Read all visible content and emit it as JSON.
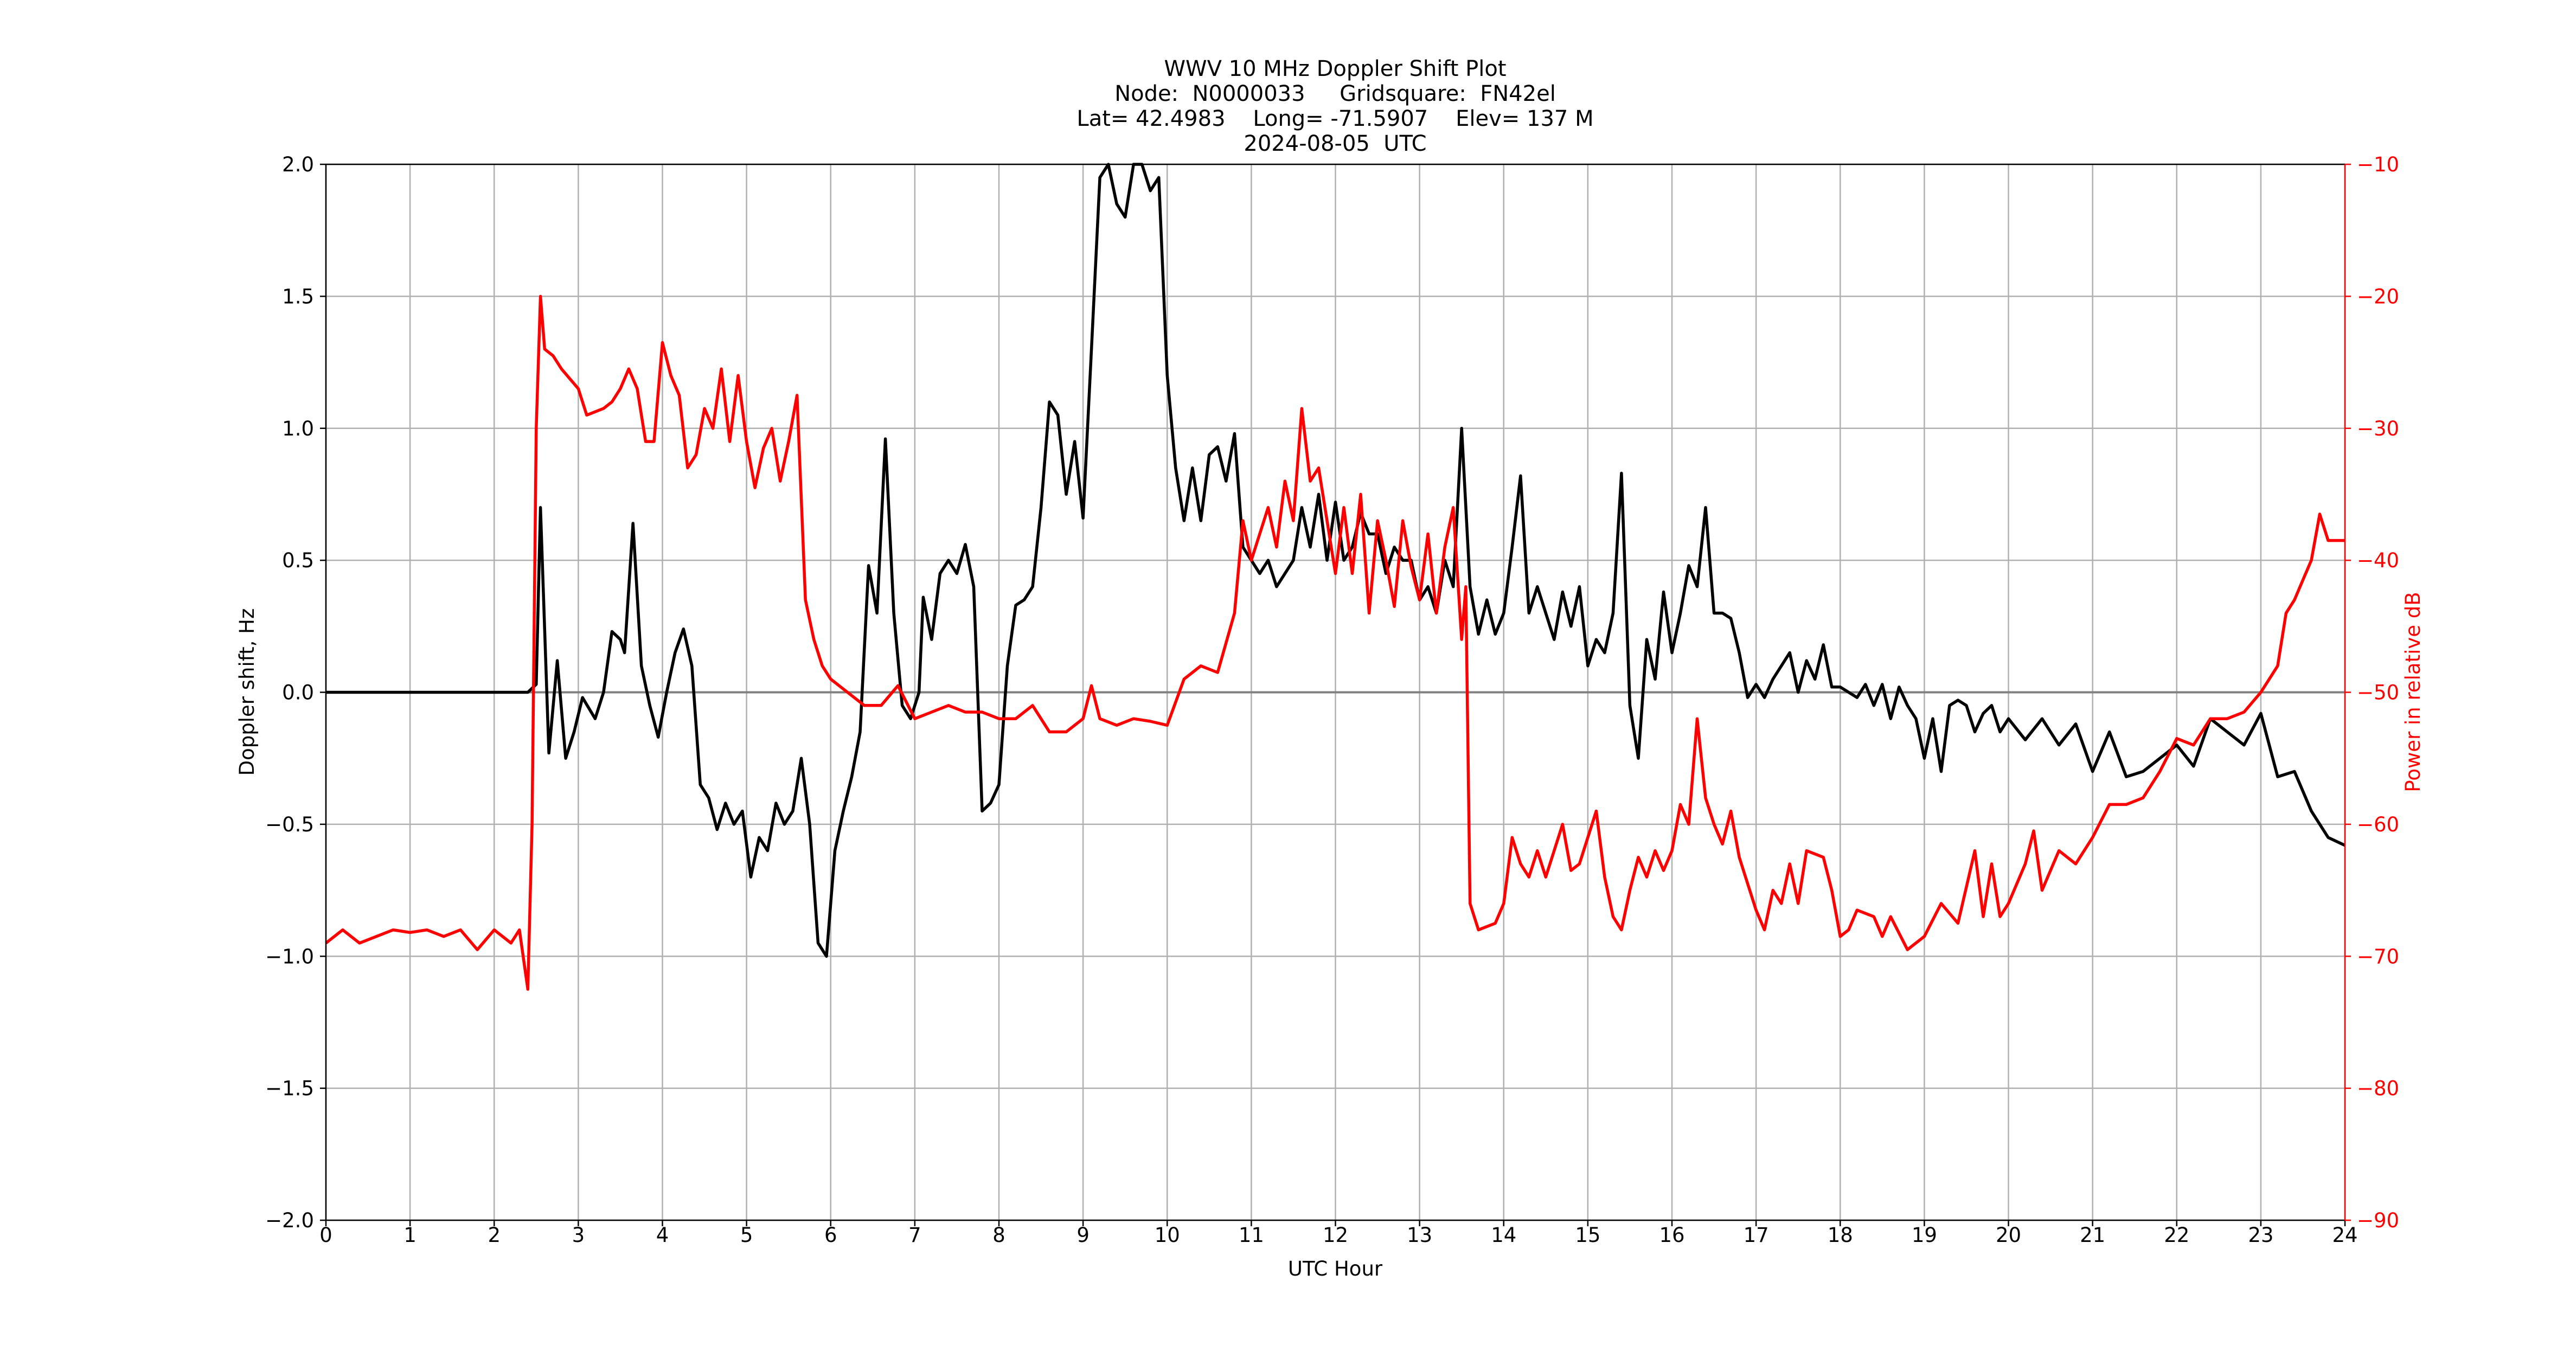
{
  "chart_data": {
    "type": "line",
    "title": [
      "WWV 10 MHz Doppler Shift Plot",
      "Node:  N0000033     Gridsquare:  FN42el",
      "Lat= 42.4983    Long= -71.5907    Elev= 137 M",
      "2024-08-05  UTC"
    ],
    "xlabel": "UTC Hour",
    "ylabel": "Doppler shift, Hz",
    "y2label": "Power in relative dB",
    "xlim": [
      0,
      24
    ],
    "xticks": [
      0,
      1,
      2,
      3,
      4,
      5,
      6,
      7,
      8,
      9,
      10,
      11,
      12,
      13,
      14,
      15,
      16,
      17,
      18,
      19,
      20,
      21,
      22,
      23,
      24
    ],
    "ylim": [
      -2,
      2
    ],
    "yticks": [
      {
        "value": -2,
        "label": "−2.0"
      },
      {
        "value": -1.5,
        "label": "−1.5"
      },
      {
        "value": -1,
        "label": "−1.0"
      },
      {
        "value": -0.5,
        "label": "−0.5"
      },
      {
        "value": 0,
        "label": "0.0"
      },
      0.5,
      {
        "value": 1,
        "label": "1.0"
      },
      1.5,
      {
        "value": 2,
        "label": "2.0"
      }
    ],
    "y2lim": [
      -90,
      -10
    ],
    "y2ticks": [
      {
        "value": -90,
        "label": "−90"
      },
      {
        "value": -80,
        "label": "−80"
      },
      {
        "value": -70,
        "label": "−70"
      },
      {
        "value": -60,
        "label": "−60"
      },
      {
        "value": -50,
        "label": "−50"
      },
      {
        "value": -40,
        "label": "−40"
      },
      {
        "value": -30,
        "label": "−30"
      },
      {
        "value": -20,
        "label": "−20"
      },
      {
        "value": -10,
        "label": "−10"
      }
    ],
    "y2color": "#ff0000",
    "grid": true,
    "axhline": 0,
    "series": [
      {
        "color": "#000000",
        "axis": "y",
        "x": [
          0,
          2.4,
          2.5,
          2.55,
          2.65,
          2.75,
          2.85,
          2.95,
          3.05,
          3.2,
          3.3,
          3.4,
          3.5,
          3.55,
          3.65,
          3.75,
          3.85,
          3.95,
          4.05,
          4.15,
          4.25,
          4.35,
          4.45,
          4.55,
          4.65,
          4.75,
          4.85,
          4.95,
          5.05,
          5.15,
          5.25,
          5.35,
          5.45,
          5.55,
          5.65,
          5.75,
          5.85,
          5.95,
          6.05,
          6.15,
          6.25,
          6.35,
          6.45,
          6.55,
          6.65,
          6.75,
          6.85,
          6.95,
          7.05,
          7.1,
          7.2,
          7.3,
          7.4,
          7.5,
          7.6,
          7.7,
          7.8,
          7.9,
          8.0,
          8.1,
          8.2,
          8.3,
          8.4,
          8.5,
          8.6,
          8.7,
          8.8,
          8.9,
          9.0,
          9.1,
          9.2,
          9.3,
          9.4,
          9.5,
          9.6,
          9.7,
          9.8,
          9.9,
          10.0,
          10.1,
          10.2,
          10.3,
          10.4,
          10.5,
          10.6,
          10.7,
          10.8,
          10.9,
          11.0,
          11.1,
          11.2,
          11.3,
          11.4,
          11.5,
          11.6,
          11.7,
          11.8,
          11.9,
          12.0,
          12.1,
          12.2,
          12.3,
          12.4,
          12.5,
          12.6,
          12.7,
          12.8,
          12.9,
          13.0,
          13.1,
          13.2,
          13.3,
          13.4,
          13.5,
          13.6,
          13.7,
          13.8,
          13.9,
          14.0,
          14.1,
          14.2,
          14.3,
          14.4,
          14.5,
          14.6,
          14.7,
          14.8,
          14.9,
          15.0,
          15.1,
          15.2,
          15.3,
          15.4,
          15.5,
          15.6,
          15.7,
          15.8,
          15.9,
          16.0,
          16.1,
          16.2,
          16.3,
          16.4,
          16.5,
          16.6,
          16.7,
          16.8,
          16.9,
          17.0,
          17.1,
          17.2,
          17.4,
          17.5,
          17.6,
          17.7,
          17.8,
          17.9,
          18.0,
          18.2,
          18.3,
          18.4,
          18.5,
          18.6,
          18.7,
          18.8,
          18.9,
          19.0,
          19.1,
          19.2,
          19.3,
          19.4,
          19.5,
          19.6,
          19.7,
          19.8,
          19.9,
          20.0,
          20.2,
          20.4,
          20.6,
          20.8,
          21.0,
          21.2,
          21.4,
          21.6,
          21.8,
          22.0,
          22.2,
          22.4,
          22.6,
          22.8,
          23.0,
          23.2,
          23.4,
          23.6,
          23.8,
          24.0
        ],
        "values": [
          0,
          0,
          0.03,
          0.7,
          -0.23,
          0.12,
          -0.25,
          -0.15,
          -0.02,
          -0.1,
          0,
          0.23,
          0.2,
          0.15,
          0.64,
          0.1,
          -0.05,
          -0.17,
          0,
          0.15,
          0.24,
          0.1,
          -0.35,
          -0.4,
          -0.52,
          -0.42,
          -0.5,
          -0.45,
          -0.7,
          -0.55,
          -0.6,
          -0.42,
          -0.5,
          -0.45,
          -0.25,
          -0.5,
          -0.95,
          -1.0,
          -0.6,
          -0.45,
          -0.32,
          -0.15,
          0.48,
          0.3,
          0.96,
          0.3,
          -0.05,
          -0.1,
          0,
          0.36,
          0.2,
          0.45,
          0.5,
          0.45,
          0.56,
          0.4,
          -0.45,
          -0.42,
          -0.35,
          0.1,
          0.33,
          0.35,
          0.4,
          0.7,
          1.1,
          1.05,
          0.75,
          0.95,
          0.66,
          1.3,
          1.95,
          2.0,
          1.85,
          1.8,
          2.0,
          2.0,
          1.9,
          1.95,
          1.2,
          0.85,
          0.65,
          0.85,
          0.65,
          0.9,
          0.93,
          0.8,
          0.98,
          0.55,
          0.5,
          0.45,
          0.5,
          0.4,
          0.45,
          0.5,
          0.7,
          0.55,
          0.75,
          0.5,
          0.72,
          0.5,
          0.55,
          0.68,
          0.6,
          0.6,
          0.45,
          0.55,
          0.5,
          0.5,
          0.35,
          0.4,
          0.3,
          0.5,
          0.4,
          1.0,
          0.4,
          0.22,
          0.35,
          0.22,
          0.3,
          0.55,
          0.82,
          0.3,
          0.4,
          0.3,
          0.2,
          0.38,
          0.25,
          0.4,
          0.1,
          0.2,
          0.15,
          0.3,
          0.83,
          -0.05,
          -0.25,
          0.2,
          0.05,
          0.38,
          0.15,
          0.3,
          0.48,
          0.4,
          0.7,
          0.3,
          0.3,
          0.28,
          0.15,
          -0.02,
          0.03,
          -0.02,
          0.05,
          0.15,
          0,
          0.12,
          0.05,
          0.18,
          0.02,
          0.02,
          -0.02,
          0.03,
          -0.05,
          0.03,
          -0.1,
          0.02,
          -0.05,
          -0.1,
          -0.25,
          -0.1,
          -0.3,
          -0.05,
          -0.03,
          -0.05,
          -0.15,
          -0.08,
          -0.05,
          -0.15,
          -0.1,
          -0.18,
          -0.1,
          -0.2,
          -0.12,
          -0.3,
          -0.15,
          -0.32,
          -0.3,
          -0.25,
          -0.2,
          -0.28,
          -0.1,
          -0.15,
          -0.2,
          -0.08,
          -0.32,
          -0.3,
          -0.45,
          -0.55,
          -0.58
        ]
      },
      {
        "color": "#ff0000",
        "axis": "y2",
        "x": [
          0,
          0.2,
          0.4,
          0.6,
          0.8,
          1.0,
          1.2,
          1.4,
          1.6,
          1.8,
          2.0,
          2.2,
          2.3,
          2.4,
          2.45,
          2.5,
          2.55,
          2.6,
          2.7,
          2.8,
          3.0,
          3.1,
          3.3,
          3.4,
          3.5,
          3.6,
          3.7,
          3.8,
          3.9,
          4.0,
          4.1,
          4.2,
          4.3,
          4.4,
          4.5,
          4.6,
          4.7,
          4.8,
          4.9,
          5.0,
          5.1,
          5.2,
          5.3,
          5.4,
          5.5,
          5.6,
          5.7,
          5.8,
          5.9,
          6.0,
          6.2,
          6.4,
          6.6,
          6.8,
          7.0,
          7.2,
          7.4,
          7.6,
          7.8,
          8.0,
          8.2,
          8.4,
          8.6,
          8.8,
          9.0,
          9.1,
          9.2,
          9.4,
          9.6,
          9.8,
          10.0,
          10.2,
          10.4,
          10.6,
          10.8,
          10.9,
          11.0,
          11.2,
          11.3,
          11.4,
          11.5,
          11.6,
          11.7,
          11.8,
          11.9,
          12.0,
          12.1,
          12.2,
          12.3,
          12.4,
          12.5,
          12.6,
          12.7,
          12.8,
          12.9,
          13.0,
          13.1,
          13.2,
          13.3,
          13.4,
          13.5,
          13.55,
          13.6,
          13.7,
          13.9,
          14.0,
          14.1,
          14.2,
          14.3,
          14.4,
          14.5,
          14.6,
          14.7,
          14.8,
          14.9,
          15.0,
          15.1,
          15.2,
          15.3,
          15.4,
          15.5,
          15.6,
          15.7,
          15.8,
          15.9,
          16.0,
          16.1,
          16.2,
          16.3,
          16.4,
          16.5,
          16.6,
          16.7,
          16.8,
          16.9,
          17.0,
          17.1,
          17.2,
          17.3,
          17.4,
          17.5,
          17.6,
          17.8,
          17.9,
          18.0,
          18.1,
          18.2,
          18.4,
          18.5,
          18.6,
          18.8,
          19.0,
          19.2,
          19.4,
          19.6,
          19.7,
          19.8,
          19.9,
          20.0,
          20.2,
          20.3,
          20.4,
          20.6,
          20.8,
          21.0,
          21.2,
          21.4,
          21.6,
          21.8,
          22.0,
          22.2,
          22.4,
          22.6,
          22.8,
          23.0,
          23.1,
          23.2,
          23.3,
          23.4,
          23.5,
          23.6,
          23.7,
          23.8,
          24.0
        ],
        "values": [
          -69,
          -68,
          -69,
          -68.5,
          -68,
          -68.2,
          -68,
          -68.5,
          -68,
          -69.5,
          -68,
          -69,
          -68,
          -72.5,
          -60,
          -30,
          -20,
          -24,
          -24.5,
          -25.5,
          -27,
          -29,
          -28.5,
          -28,
          -27,
          -25.5,
          -27,
          -31,
          -31,
          -23.5,
          -26,
          -27.5,
          -33,
          -32,
          -28.5,
          -30,
          -25.5,
          -31,
          -26,
          -31,
          -34.5,
          -31.5,
          -30,
          -34,
          -31,
          -27.5,
          -43,
          -46,
          -48,
          -49,
          -50,
          -51,
          -51,
          -49.5,
          -52,
          -51.5,
          -51,
          -51.5,
          -51.5,
          -52,
          -52,
          -51,
          -53,
          -53,
          -52,
          -49.5,
          -52,
          -52.5,
          -52,
          -52.2,
          -52.5,
          -49,
          -48,
          -48.5,
          -44,
          -37,
          -40,
          -36,
          -39,
          -34,
          -37,
          -28.5,
          -34,
          -33,
          -37,
          -41,
          -36,
          -41,
          -35,
          -44,
          -37,
          -40,
          -43.5,
          -37,
          -40.5,
          -43,
          -38,
          -44,
          -39,
          -36,
          -46,
          -42,
          -66,
          -68,
          -67.5,
          -66,
          -61,
          -63,
          -64,
          -62,
          -64,
          -62,
          -60,
          -63.5,
          -63,
          -61,
          -59,
          -64,
          -67,
          -68,
          -65,
          -62.5,
          -64,
          -62,
          -63.5,
          -62,
          -58.5,
          -60,
          -52,
          -58,
          -60,
          -61.5,
          -59,
          -62.5,
          -64.5,
          -66.5,
          -68,
          -65,
          -66,
          -63,
          -66,
          -62,
          -62.5,
          -65,
          -68.5,
          -68,
          -66.5,
          -67,
          -68.5,
          -67,
          -69.5,
          -68.5,
          -66,
          -67.5,
          -62,
          -67,
          -63,
          -67,
          -66,
          -63,
          -60.5,
          -65,
          -62,
          -63,
          -61,
          -58.5,
          -58.5,
          -58,
          -56,
          -53.5,
          -54,
          -52,
          -52,
          -51.5,
          -50,
          -49,
          -48,
          -44,
          -43,
          -41.5,
          -40,
          -36.5,
          -38.5,
          -38.5
        ]
      }
    ]
  }
}
